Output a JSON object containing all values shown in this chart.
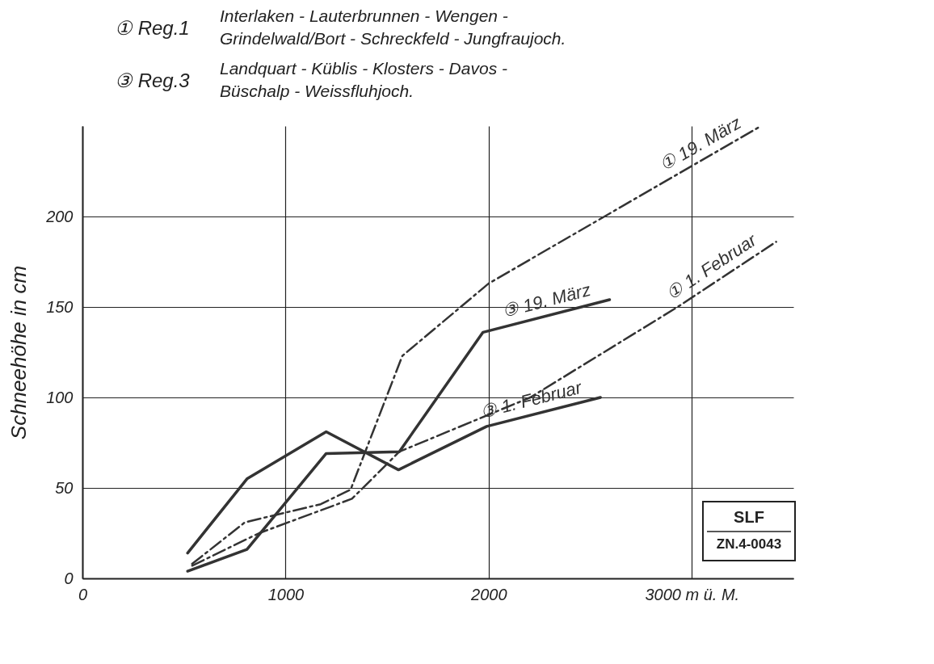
{
  "chart_data": {
    "type": "line",
    "ylabel": "Schneehöhe in cm",
    "series": [
      {
        "name": "① 19. März",
        "color": "#333333",
        "line_style": "dashed",
        "x": [
          540,
          800,
          1173,
          1320,
          1575,
          2000,
          3340
        ],
        "values": [
          8,
          31,
          41,
          49,
          123,
          163,
          250
        ]
      },
      {
        "name": "① 1. Februar",
        "color": "#333333",
        "line_style": "dashed",
        "x": [
          540,
          870,
          1327,
          1560,
          2205,
          2930,
          3415
        ],
        "values": [
          7,
          25,
          44,
          70,
          100,
          150,
          186
        ]
      },
      {
        "name": "③ 19. März",
        "color": "#333333",
        "line_style": "solid",
        "x": [
          518,
          810,
          1200,
          1560,
          1972,
          2595
        ],
        "values": [
          4,
          16,
          69,
          70,
          136,
          154
        ]
      },
      {
        "name": "③ 1. Februar",
        "color": "#333333",
        "line_style": "solid",
        "x": [
          518,
          810,
          1200,
          1556,
          1990,
          2550
        ],
        "values": [
          14,
          55,
          81,
          60,
          84,
          100
        ]
      }
    ],
    "xlim": [
      0,
      3500
    ],
    "ylim": [
      0,
      250
    ],
    "xticks": [
      0,
      1000,
      2000,
      {
        "value": 3000,
        "label": "3000 m ü. M."
      }
    ],
    "yticks": [
      0,
      50,
      100,
      150,
      200
    ],
    "grid": true,
    "marker": "none",
    "annotations": [
      "① Reg.1",
      "Interlaken - Lauterbrunnen - Wengen -",
      "Grindelwald/Bort - Schreckfeld - Jungfraujoch.",
      "③ Reg.3",
      "Landquart - Küblis - Klosters - Davos -",
      "Büschalp - Weissfluhjoch.",
      "SLF",
      "ZN.4-0043"
    ]
  }
}
